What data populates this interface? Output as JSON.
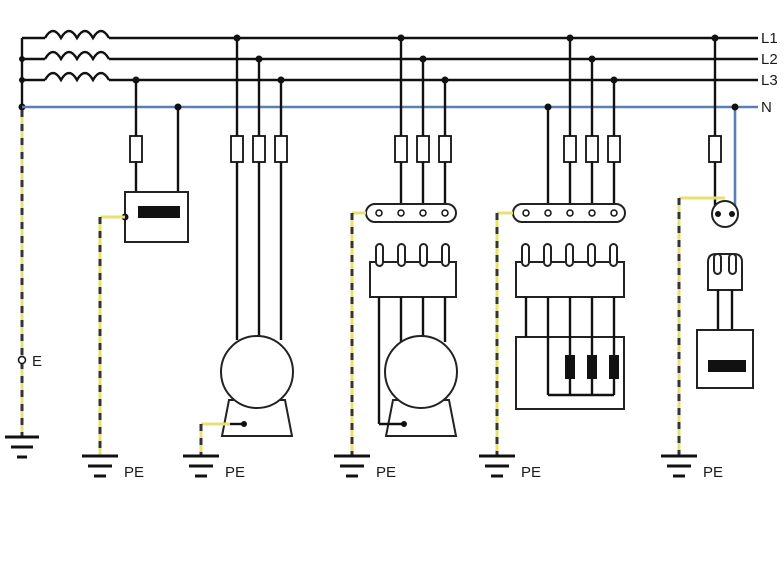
{
  "lines": {
    "l1": "L1",
    "l2": "L2",
    "l3": "L3",
    "n": "N"
  },
  "earth": {
    "label": "E"
  },
  "pe_labels": [
    "PE",
    "PE",
    "PE",
    "PE",
    "PE"
  ],
  "colors": {
    "phase": "#111111",
    "neutral": "#5a7fb8",
    "pe_yellow": "#e8e070",
    "pe_stripe": "#333333"
  }
}
